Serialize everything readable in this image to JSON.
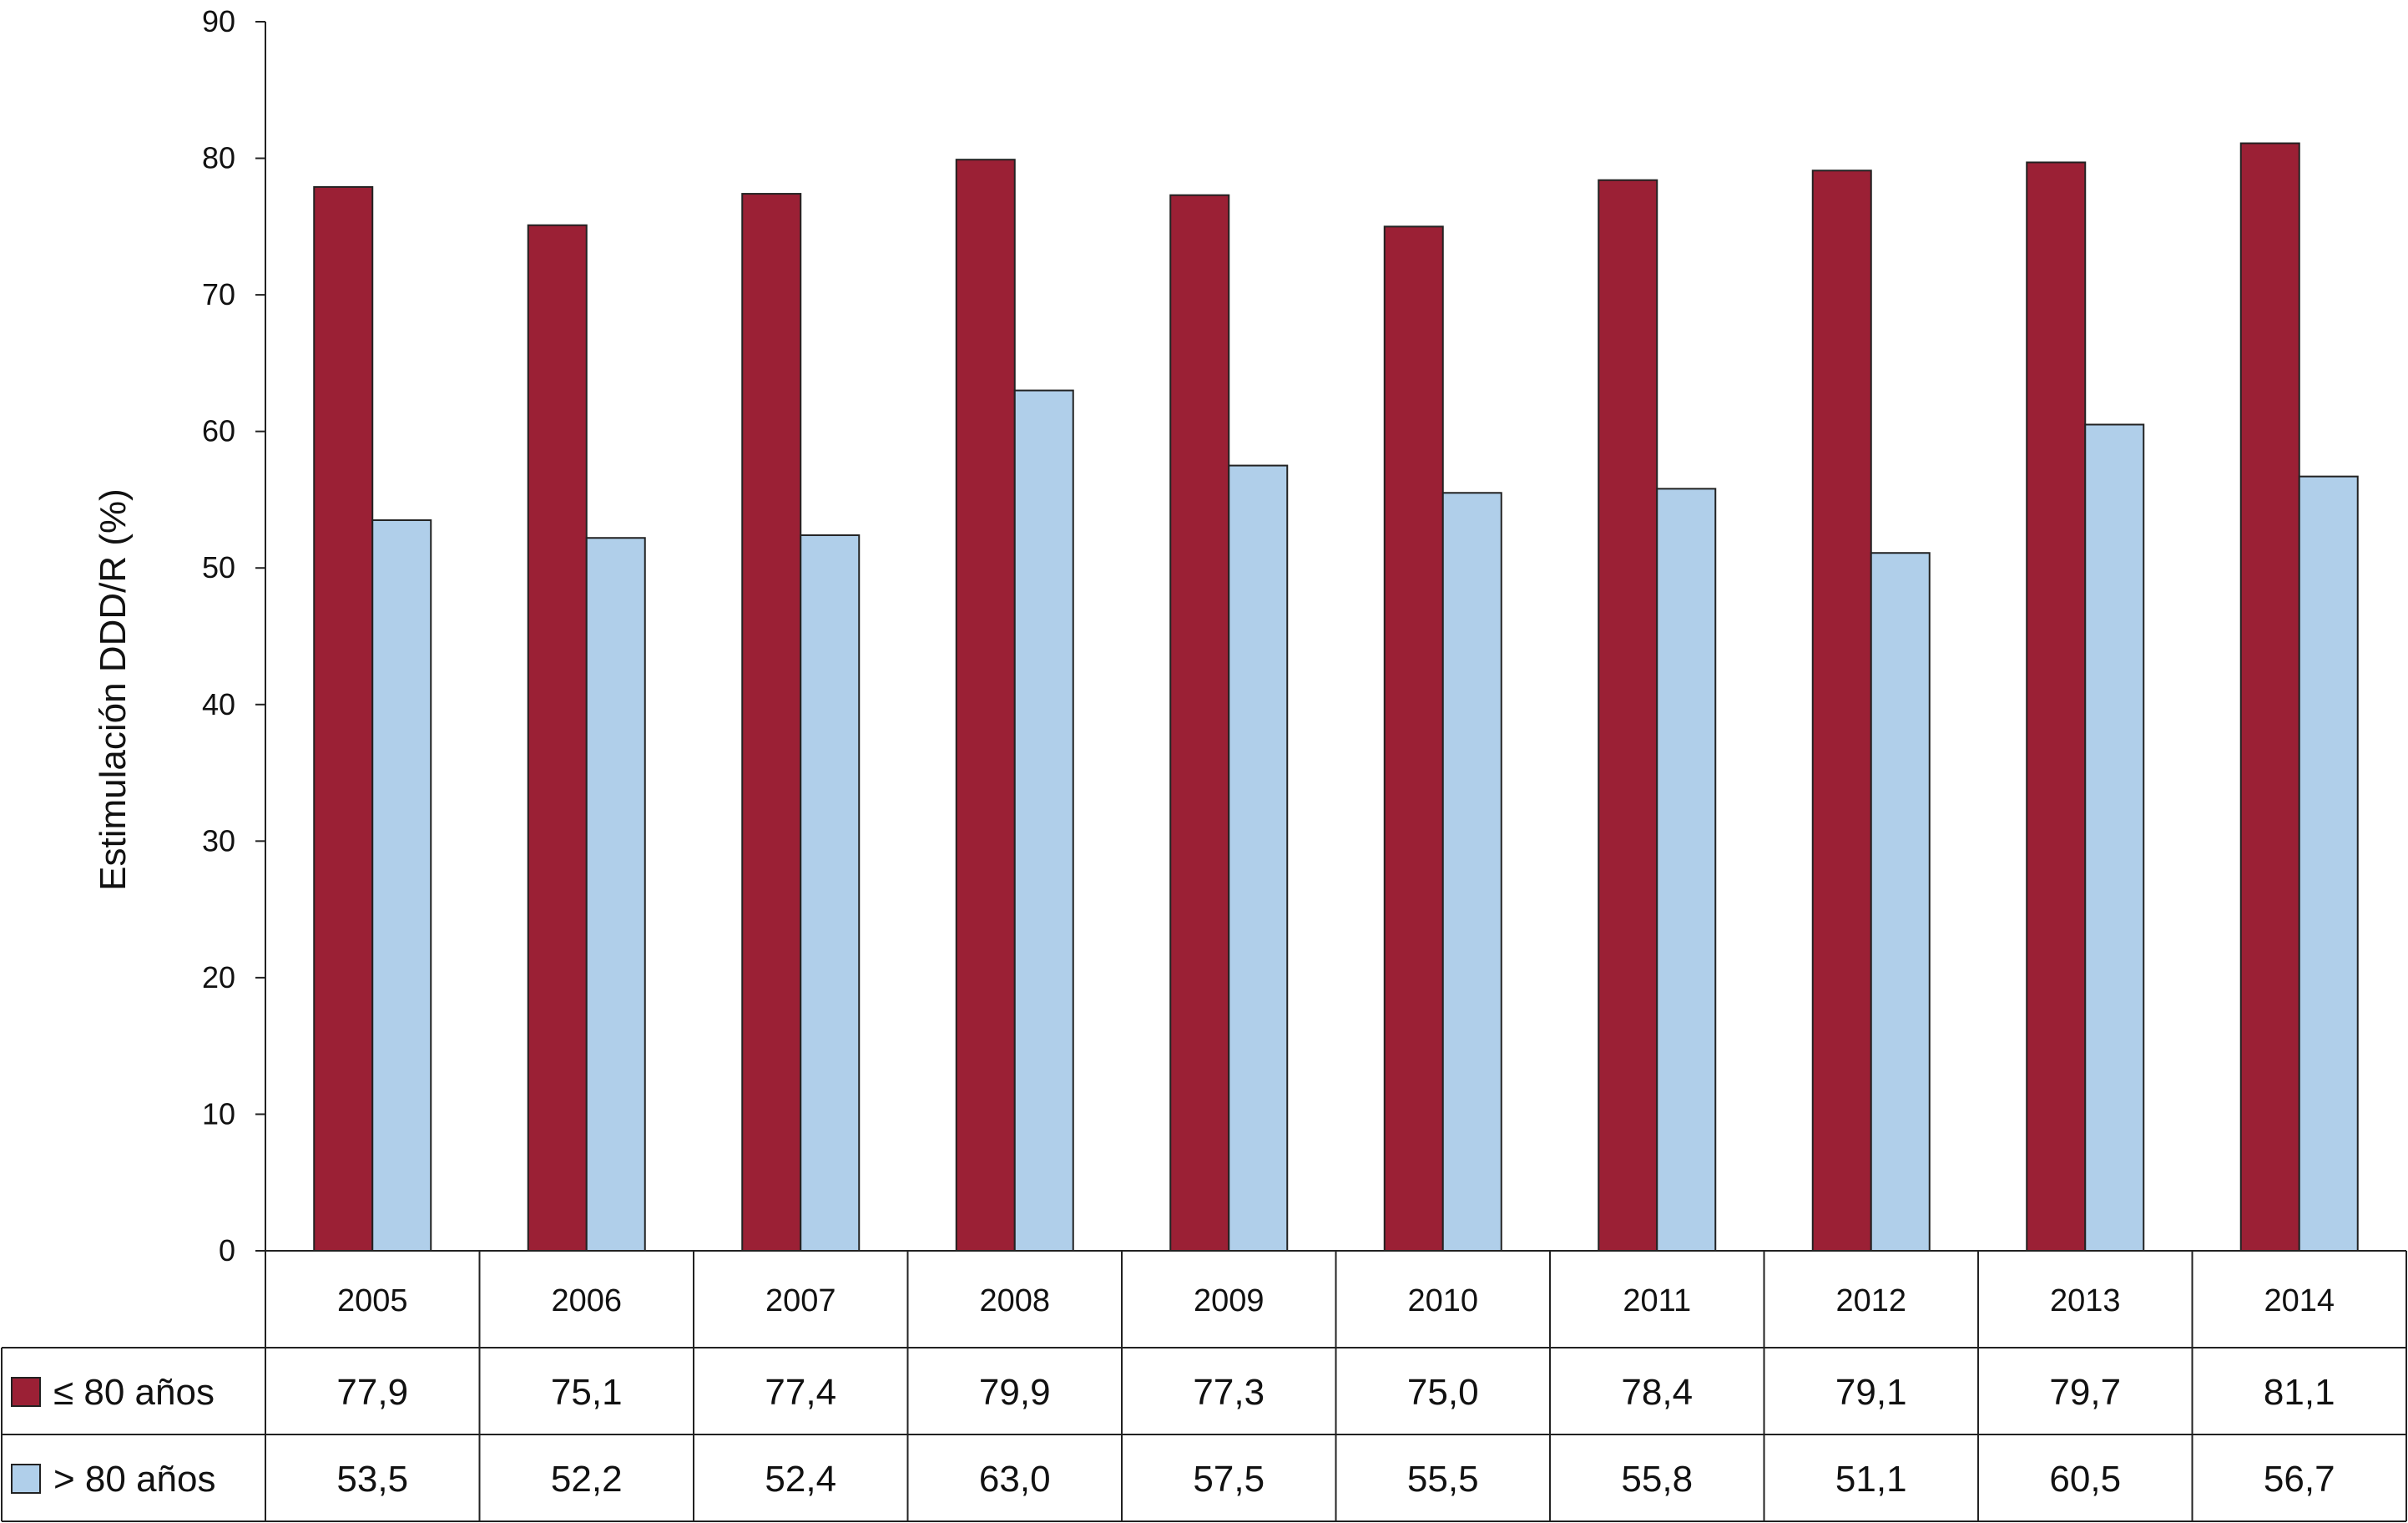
{
  "chart_data": {
    "type": "bar",
    "ylabel": "Estimulación DDD/R (%)",
    "ylim": [
      0,
      90
    ],
    "yticks": [
      0,
      10,
      20,
      30,
      40,
      50,
      60,
      70,
      80,
      90
    ],
    "grid": false,
    "legend_placement": "table-left",
    "categories": [
      "2005",
      "2006",
      "2007",
      "2008",
      "2009",
      "2010",
      "2011",
      "2012",
      "2013",
      "2014"
    ],
    "series": [
      {
        "name": "≤ 80 años",
        "color": "#9b2035",
        "values": [
          77.9,
          75.1,
          77.4,
          79.9,
          77.3,
          75.0,
          78.4,
          79.1,
          79.7,
          81.1
        ],
        "labels": [
          "77,9",
          "75,1",
          "77,4",
          "79,9",
          "77,3",
          "75,0",
          "78,4",
          "79,1",
          "79,7",
          "81,1"
        ]
      },
      {
        "name": "> 80 años",
        "color": "#b0cfea",
        "values": [
          53.5,
          52.2,
          52.4,
          63.0,
          57.5,
          55.5,
          55.8,
          51.1,
          60.5,
          56.7
        ],
        "labels": [
          "53,5",
          "52,2",
          "52,4",
          "63,0",
          "57,5",
          "55,5",
          "55,8",
          "51,1",
          "60,5",
          "56,7"
        ]
      }
    ]
  }
}
